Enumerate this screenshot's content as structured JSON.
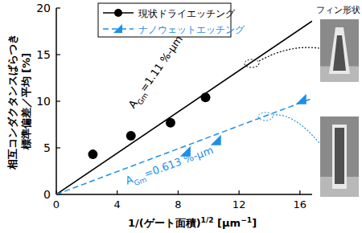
{
  "chart_data": {
    "type": "scatter",
    "y_label": [
      "相互コンダクタンスばらつき",
      "標準偏差／平均 [%]"
    ],
    "x_label": [
      {
        "text": "1/(ゲート面積)"
      },
      {
        "text": "1/2",
        "sup": true
      },
      {
        "text": " [μm"
      },
      {
        "text": "−1",
        "sup": true
      },
      {
        "text": "]"
      }
    ],
    "xlim": [
      0,
      16.8
    ],
    "ylim": [
      0,
      20
    ],
    "xticks": [
      0,
      4,
      8,
      12,
      16
    ],
    "yticks": [
      0,
      5,
      10,
      15,
      20
    ],
    "grid": false,
    "legend": "top",
    "series": [
      {
        "name": "現状ドライエッチング",
        "color": "#000000",
        "marker": "circle",
        "line_style": "solid",
        "x": [
          2.4,
          4.9,
          7.5,
          9.8
        ],
        "values": [
          4.3,
          6.3,
          7.7,
          10.4
        ],
        "fit_x": [
          0,
          16.8
        ],
        "fit_values": [
          0,
          18.6
        ]
      },
      {
        "name": "ナノウェットエッチング",
        "color": "#1e8fe8",
        "marker": "triangle",
        "line_style": "dashed",
        "x": [
          8.5,
          10.5,
          16.1
        ],
        "values": [
          4.6,
          5.8,
          10.2
        ],
        "fit_x": [
          0,
          16.8
        ],
        "fit_values": [
          0,
          10.3
        ]
      }
    ],
    "annotations": [
      {
        "parts": [
          {
            "text": "A"
          },
          {
            "text": "Gm",
            "sub": true
          },
          {
            "text": "=1.11 %-μm"
          }
        ],
        "color": "#000000"
      },
      {
        "parts": [
          {
            "text": "A"
          },
          {
            "text": "Gm",
            "sub": true
          },
          {
            "text": "=0.613 %-μm"
          }
        ],
        "color": "#1e8fe8"
      }
    ],
    "inset_title": "フィン形状"
  }
}
